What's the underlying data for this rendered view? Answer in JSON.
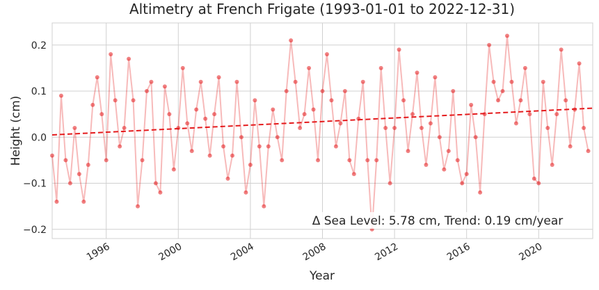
{
  "chart_data": {
    "type": "scatter",
    "title": "Altimetry at French Frigate (1993-01-01 to 2022-12-31)",
    "x_label": "Year",
    "y_label": "Height (cm)",
    "annotation": "Δ Sea Level: 5.78 cm, Trend: 0.19 cm/year",
    "xlim": [
      1993,
      2023
    ],
    "ylim": [
      -0.22,
      0.248
    ],
    "xticks": [
      1996,
      2000,
      2004,
      2008,
      2012,
      2016,
      2020
    ],
    "yticks": [
      {
        "value": -0.2,
        "label": "−0.2"
      },
      {
        "value": -0.1,
        "label": "−0.1"
      },
      {
        "value": 0,
        "label": "0.0"
      },
      0.1,
      0.2
    ],
    "grid": true,
    "series": [
      {
        "color": "#e41a1c",
        "x": [
          1993.0,
          1993.25,
          1993.5,
          1993.75,
          1994.0,
          1994.25,
          1994.5,
          1994.75,
          1995.0,
          1995.25,
          1995.5,
          1995.75,
          1996.0,
          1996.25,
          1996.5,
          1996.75,
          1997.0,
          1997.25,
          1997.5,
          1997.75,
          1998.0,
          1998.25,
          1998.5,
          1998.75,
          1999.0,
          1999.25,
          1999.5,
          1999.75,
          2000.0,
          2000.25,
          2000.5,
          2000.75,
          2001.0,
          2001.25,
          2001.5,
          2001.75,
          2002.0,
          2002.25,
          2002.5,
          2002.75,
          2003.0,
          2003.25,
          2003.5,
          2003.75,
          2004.0,
          2004.25,
          2004.5,
          2004.75,
          2005.0,
          2005.25,
          2005.5,
          2005.75,
          2006.0,
          2006.25,
          2006.5,
          2006.75,
          2007.0,
          2007.25,
          2007.5,
          2007.75,
          2008.0,
          2008.25,
          2008.5,
          2008.75,
          2009.0,
          2009.25,
          2009.5,
          2009.75,
          2010.0,
          2010.25,
          2010.5,
          2010.75,
          2011.0,
          2011.25,
          2011.5,
          2011.75,
          2012.0,
          2012.25,
          2012.5,
          2012.75,
          2013.0,
          2013.25,
          2013.5,
          2013.75,
          2014.0,
          2014.25,
          2014.5,
          2014.75,
          2015.0,
          2015.25,
          2015.5,
          2015.75,
          2016.0,
          2016.25,
          2016.5,
          2016.75,
          2017.0,
          2017.25,
          2017.5,
          2017.75,
          2018.0,
          2018.25,
          2018.5,
          2018.75,
          2019.0,
          2019.25,
          2019.5,
          2019.75,
          2020.0,
          2020.25,
          2020.5,
          2020.75,
          2021.0,
          2021.25,
          2021.5,
          2021.75,
          2022.0,
          2022.25,
          2022.5,
          2022.75
        ],
        "values": [
          -0.04,
          -0.14,
          0.09,
          -0.05,
          -0.1,
          0.02,
          -0.08,
          -0.14,
          -0.06,
          0.07,
          0.13,
          0.05,
          -0.05,
          0.18,
          0.08,
          -0.02,
          0.02,
          0.17,
          0.08,
          -0.15,
          -0.05,
          0.1,
          0.12,
          -0.1,
          -0.12,
          0.11,
          0.05,
          -0.07,
          0.02,
          0.15,
          0.03,
          -0.03,
          0.06,
          0.12,
          0.04,
          -0.04,
          0.05,
          0.13,
          -0.02,
          -0.09,
          -0.04,
          0.12,
          0.0,
          -0.12,
          -0.06,
          0.08,
          -0.02,
          -0.15,
          -0.02,
          0.06,
          0.0,
          -0.05,
          0.1,
          0.21,
          0.12,
          0.02,
          0.05,
          0.15,
          0.06,
          -0.05,
          0.1,
          0.18,
          0.08,
          -0.02,
          0.03,
          0.1,
          -0.05,
          -0.08,
          0.04,
          0.12,
          -0.05,
          -0.2,
          -0.05,
          0.15,
          0.02,
          -0.1,
          0.02,
          0.19,
          0.08,
          -0.03,
          0.05,
          0.14,
          0.02,
          -0.06,
          0.03,
          0.13,
          0.0,
          -0.07,
          -0.03,
          0.1,
          -0.05,
          -0.1,
          -0.08,
          0.07,
          0.0,
          -0.12,
          0.05,
          0.2,
          0.12,
          0.08,
          0.1,
          0.22,
          0.12,
          0.03,
          0.08,
          0.15,
          0.05,
          -0.09,
          -0.1,
          0.12,
          0.02,
          -0.06,
          0.05,
          0.19,
          0.08,
          -0.02,
          0.06,
          0.16,
          0.02,
          -0.03
        ]
      },
      {
        "color": "#e41a1c",
        "kind": "dashed-line",
        "x": [
          1993,
          2023
        ],
        "values": [
          0.005,
          0.063
        ]
      }
    ]
  }
}
